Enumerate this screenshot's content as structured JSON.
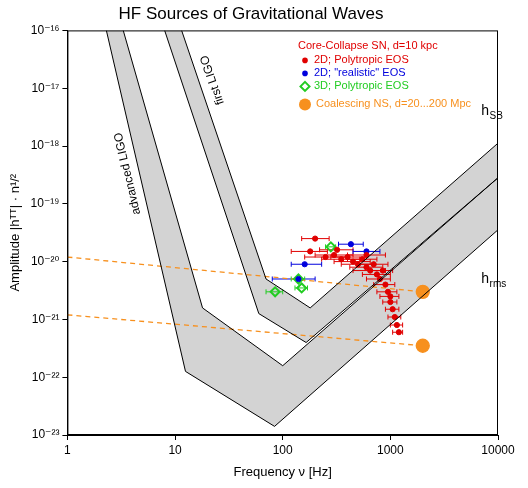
{
  "chart_data": {
    "type": "scatter",
    "title": "HF Sources of Gravitational Waves",
    "x_label": "Frequency ν [Hz]",
    "y_label": "Amplitude |hᵀᵀ| · n¹/²",
    "log": true,
    "grid": false,
    "legend": "upper right",
    "xlim": [
      1,
      10000
    ],
    "xticks": [
      1,
      10,
      100,
      1000,
      10000
    ],
    "ylim": [
      1e-23,
      1e-16
    ],
    "yticks": [
      {
        "value": 1e-23,
        "label": "10⁻²³"
      },
      {
        "value": 1e-22,
        "label": "10⁻²²"
      },
      {
        "value": 1e-21,
        "label": "10⁻²¹"
      },
      {
        "value": 1e-20,
        "label": "10⁻²⁰"
      },
      {
        "value": 1e-19,
        "label": "10⁻¹⁹"
      },
      {
        "value": 1e-18,
        "label": "10⁻¹⁸"
      },
      {
        "value": 1e-17,
        "label": "10⁻¹⁷"
      },
      {
        "value": 1e-16,
        "label": "10⁻¹⁶"
      }
    ],
    "legend_title": {
      "text": "Core-Collapse SN, d=10 kpc",
      "color": "#e00000"
    },
    "annotations": [
      {
        "text": "h",
        "subscript": "SB",
        "x": 7000,
        "y": 4e-18
      },
      {
        "text": "h",
        "subscript": "rms",
        "x": 7000,
        "y": 5e-21
      }
    ],
    "series": [
      {
        "name": "advanced LIGO",
        "type": "band",
        "color": "#d3d3d3",
        "upper": {
          "x": [
            3.3,
            18,
            100,
            10000
          ],
          "values": [
            1e-16,
            1.58e-21,
            1.58e-22,
            2.82e-19
          ]
        },
        "lower": {
          "x": [
            2.3,
            12.5,
            84,
            10000
          ],
          "values": [
            1e-16,
            1.26e-22,
            1.41e-23,
            3.55e-20
          ]
        }
      },
      {
        "name": "first LIGO",
        "type": "band",
        "color": "#d3d3d3",
        "upper": {
          "x": [
            11.5,
            70,
            180,
            10000
          ],
          "values": [
            1e-16,
            5e-21,
            1.58e-21,
            1.12e-18
          ]
        },
        "lower": {
          "x": [
            8,
            60,
            165,
            10000
          ],
          "values": [
            1e-16,
            1.26e-21,
            3.98e-22,
            2.82e-19
          ]
        }
      },
      {
        "name": "2D; Polytropic EOS",
        "type": "scatter",
        "color": "#e00000",
        "marker": "circle",
        "x": [
          200,
          180,
          250,
          300,
          350,
          400,
          450,
          500,
          550,
          600,
          650,
          700,
          750,
          800,
          850,
          900,
          950,
          1000,
          1000,
          1050,
          1100,
          1150,
          1200,
          600,
          320
        ],
        "values": [
          2.5e-20,
          1.5e-20,
          1.2e-20,
          1.3e-20,
          1.1e-20,
          1.2e-20,
          1e-20,
          9e-21,
          1.1e-20,
          8e-21,
          7e-21,
          9e-21,
          6e-21,
          5e-21,
          7e-21,
          4e-21,
          3e-21,
          2.5e-21,
          2e-21,
          1.5e-21,
          1.1e-21,
          8e-22,
          6e-22,
          1.3e-20,
          1.6e-20
        ],
        "x_low": [
          150,
          120,
          160,
          200,
          230,
          280,
          300,
          350,
          400,
          420,
          450,
          500,
          550,
          600,
          650,
          700,
          750,
          800,
          850,
          900,
          950,
          1000,
          1050,
          400,
          220
        ],
        "x_high": [
          270,
          260,
          400,
          450,
          520,
          600,
          650,
          700,
          750,
          850,
          900,
          950,
          1000,
          1000,
          1050,
          1100,
          1150,
          1200,
          1150,
          1200,
          1250,
          1300,
          1300,
          900,
          450
        ]
      },
      {
        "name": "2D; \"realistic\" EOS",
        "type": "scatter",
        "color": "#0000dd",
        "marker": "circle",
        "x": [
          140,
          160,
          430,
          600
        ],
        "values": [
          5e-21,
          9e-21,
          2e-20,
          1.5e-20
        ],
        "x_low": [
          80,
          120,
          330,
          450
        ],
        "x_high": [
          200,
          230,
          560,
          800
        ]
      },
      {
        "name": "3D; Polytropic EOS",
        "type": "scatter",
        "color": "#22cc22",
        "marker": "open diamond",
        "x": [
          280,
          140,
          150,
          85
        ],
        "values": [
          1.8e-20,
          5e-21,
          3.5e-21,
          3e-21
        ],
        "x_low": [
          250,
          120,
          130,
          70
        ],
        "x_high": [
          310,
          160,
          170,
          100
        ]
      },
      {
        "name": "Coalescing NS, d=20...200 Mpc",
        "type": "line",
        "color": "#f7901e",
        "line_style": "dashed",
        "marker": "circle",
        "tracks": [
          {
            "x": [
              1,
              2000
            ],
            "values": [
              1.2e-20,
              3e-21
            ]
          },
          {
            "x": [
              1,
              2000
            ],
            "values": [
              1.2e-21,
              3.5e-22
            ]
          }
        ]
      }
    ]
  }
}
